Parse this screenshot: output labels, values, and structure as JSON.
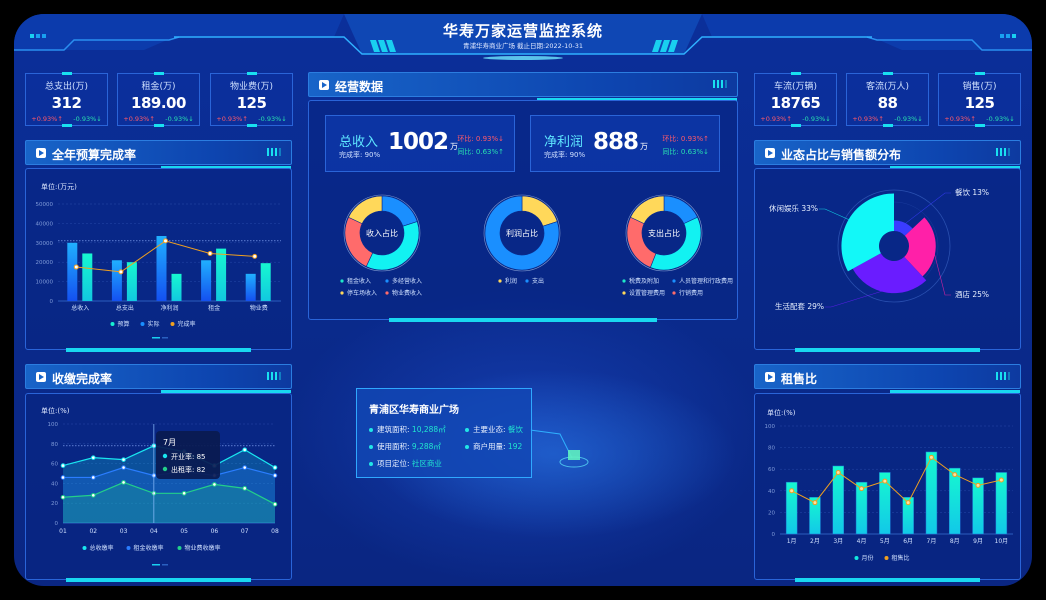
{
  "header": {
    "title": "华寿万家运营监控系统",
    "subtitle": "青浦华寿商业广场   截止日期:2022-10-31"
  },
  "kpis_left": [
    {
      "label": "总支出(万)",
      "value": "312",
      "up": "+0.93%↑",
      "down": "-0.93%↓"
    },
    {
      "label": "租金(万)",
      "value": "189.00",
      "up": "+0.93%↑",
      "down": "-0.93%↓"
    },
    {
      "label": "物业费(万)",
      "value": "125",
      "up": "+0.93%↑",
      "down": "-0.93%↓"
    }
  ],
  "kpis_right": [
    {
      "label": "车流(万辆)",
      "value": "18765",
      "up": "+0.93%↑",
      "down": "-0.93%↓"
    },
    {
      "label": "客流(万人)",
      "value": "88",
      "up": "+0.93%↑",
      "down": "-0.93%↓"
    },
    {
      "label": "销售(万)",
      "value": "125",
      "up": "+0.93%↑",
      "down": "-0.93%↓"
    }
  ],
  "panels": {
    "budget": "全年预算完成率",
    "collection": "收缴完成率",
    "operations": "经营数据",
    "format": "业态占比与销售额分布",
    "rent": "租售比"
  },
  "operations": {
    "cards": [
      {
        "name": "总收入",
        "rate": "完成率: 90%",
        "value": "1002",
        "unit": "万",
        "c1": "环比: 0.93%↓",
        "c2": "同比: 0.63%↑"
      },
      {
        "name": "净利润",
        "rate": "完成率: 90%",
        "value": "888",
        "unit": "万",
        "c1": "环比: 0.93%↑",
        "c2": "同比: 0.63%↓"
      }
    ],
    "donuts": [
      {
        "label": "收入占比",
        "slices": [
          {
            "name": "多经营收入",
            "value": 20,
            "color": "#1a8fff"
          },
          {
            "name": "租金收入",
            "value": 37,
            "color": "#12f2f2"
          },
          {
            "name": "物业费收入",
            "value": 25,
            "color": "#ff6b6b"
          },
          {
            "name": "停车场收入",
            "value": 18,
            "color": "#ffd85a"
          }
        ],
        "legend": [
          [
            "租金收入",
            "#1ee8c8"
          ],
          [
            "多经营收入",
            "#1a8fff"
          ],
          [
            "停车场收入",
            "#ffd85a"
          ],
          [
            "物业费收入",
            "#ff6b6b"
          ]
        ]
      },
      {
        "label": "利润占比",
        "slices": [
          {
            "name": "利润",
            "value": 20,
            "color": "#ffd85a"
          },
          {
            "name": "支出",
            "value": 80,
            "color": "#1a8fff"
          }
        ],
        "legend": [
          [
            "利润",
            "#ffd85a"
          ],
          [
            "支出",
            "#1a8fff"
          ]
        ]
      },
      {
        "label": "支出占比",
        "slices": [
          {
            "name": "人员管理和行政费用",
            "value": 18,
            "color": "#1a8fff"
          },
          {
            "name": "税费及附加",
            "value": 38,
            "color": "#12f2f2"
          },
          {
            "name": "行销费用",
            "value": 26,
            "color": "#ff6b6b"
          },
          {
            "name": "设置管理费用",
            "value": 18,
            "color": "#ffd85a"
          }
        ],
        "legend": [
          [
            "税费及附加",
            "#1ee8c8"
          ],
          [
            "人员管理和行政费用",
            "#1a8fff"
          ],
          [
            "设置管理费用",
            "#ffd85a"
          ],
          [
            "行销费用",
            "#ff6b6b"
          ]
        ]
      }
    ]
  },
  "info": {
    "title": "青浦区华寿商业广场",
    "rows": [
      {
        "k": "建筑面积:",
        "v": "10,288㎡"
      },
      {
        "k": "主要业态:",
        "v": "餐饮"
      },
      {
        "k": "使用面积:",
        "v": "9,288㎡"
      },
      {
        "k": "商户用量:",
        "v": "192"
      },
      {
        "k": "项目定位:",
        "v": "社区商业"
      }
    ]
  },
  "chart_data": [
    {
      "type": "bar",
      "unit": "单位:(万元)",
      "categories": [
        "总收入",
        "总支出",
        "净利润",
        "租金",
        "物业费"
      ],
      "ylim": [
        0,
        50000
      ],
      "yticks": [
        0,
        10000,
        20000,
        30000,
        40000,
        50000
      ],
      "series": [
        {
          "name": "预算",
          "type": "bar",
          "color": "#16f0d0",
          "values": [
            24500,
            20000,
            14000,
            27000,
            19500
          ]
        },
        {
          "name": "实际",
          "type": "bar",
          "color": "#1a8fff",
          "values": [
            30000,
            21000,
            33500,
            21000,
            14000
          ]
        },
        {
          "name": "完成率",
          "type": "line",
          "color": "#f0a020",
          "values": [
            17500,
            15000,
            31000,
            24500,
            23000
          ]
        }
      ],
      "legend_order": [
        "预算",
        "实际",
        "完成率"
      ],
      "grid": "dashed",
      "legend": "bottom"
    },
    {
      "type": "area",
      "unit": "单位:(%)",
      "categories": [
        "01",
        "02",
        "03",
        "04",
        "05",
        "06",
        "07",
        "08"
      ],
      "ylim": [
        0,
        100
      ],
      "yticks": [
        0,
        20,
        40,
        60,
        80,
        100
      ],
      "series": [
        {
          "name": "总收缴率",
          "color": "#19e6f0",
          "values": [
            58,
            66,
            64,
            78,
            72,
            58,
            74,
            56
          ]
        },
        {
          "name": "租金收缴率",
          "color": "#2a7dff",
          "values": [
            46,
            46,
            56,
            48,
            52,
            48,
            56,
            48
          ]
        },
        {
          "name": "物业费收缴率",
          "color": "#22d08a",
          "values": [
            26,
            28,
            41,
            30,
            30,
            39,
            35,
            19
          ]
        }
      ],
      "tooltip": {
        "title": "7月",
        "items": [
          {
            "label": "开业率: 85",
            "color": "#19e6f0"
          },
          {
            "label": "出租率: 82",
            "color": "#22d08a"
          }
        ]
      },
      "legend": "bottom"
    },
    {
      "type": "rose",
      "slices": [
        {
          "name": "餐饮",
          "value": 13,
          "label": "餐饮 13%",
          "color": "#3a3cff"
        },
        {
          "name": "酒店",
          "value": 25,
          "label": "酒店 25%",
          "color": "#ff20a8"
        },
        {
          "name": "生活配套",
          "value": 29,
          "label": "生活配套 29%",
          "color": "#6a1cff"
        },
        {
          "name": "休闲娱乐",
          "value": 33,
          "label": "休闲娱乐 33%",
          "color": "#12f8f8"
        }
      ]
    },
    {
      "type": "bar",
      "unit": "单位:(%)",
      "categories": [
        "1月",
        "2月",
        "3月",
        "4月",
        "5月",
        "6月",
        "7月",
        "8月",
        "9月",
        "10月"
      ],
      "ylim": [
        0,
        100
      ],
      "yticks": [
        0,
        20,
        40,
        60,
        80,
        100
      ],
      "series": [
        {
          "name": "月份",
          "type": "bar",
          "color": "#12e8e0",
          "values": [
            48,
            34,
            63,
            48,
            57,
            34,
            76,
            61,
            52,
            57
          ]
        },
        {
          "name": "租售比",
          "type": "line",
          "color": "#f0a020",
          "values": [
            40,
            29,
            57,
            42,
            49,
            29,
            71,
            55,
            45,
            50
          ]
        }
      ],
      "legend": "bottom"
    }
  ]
}
